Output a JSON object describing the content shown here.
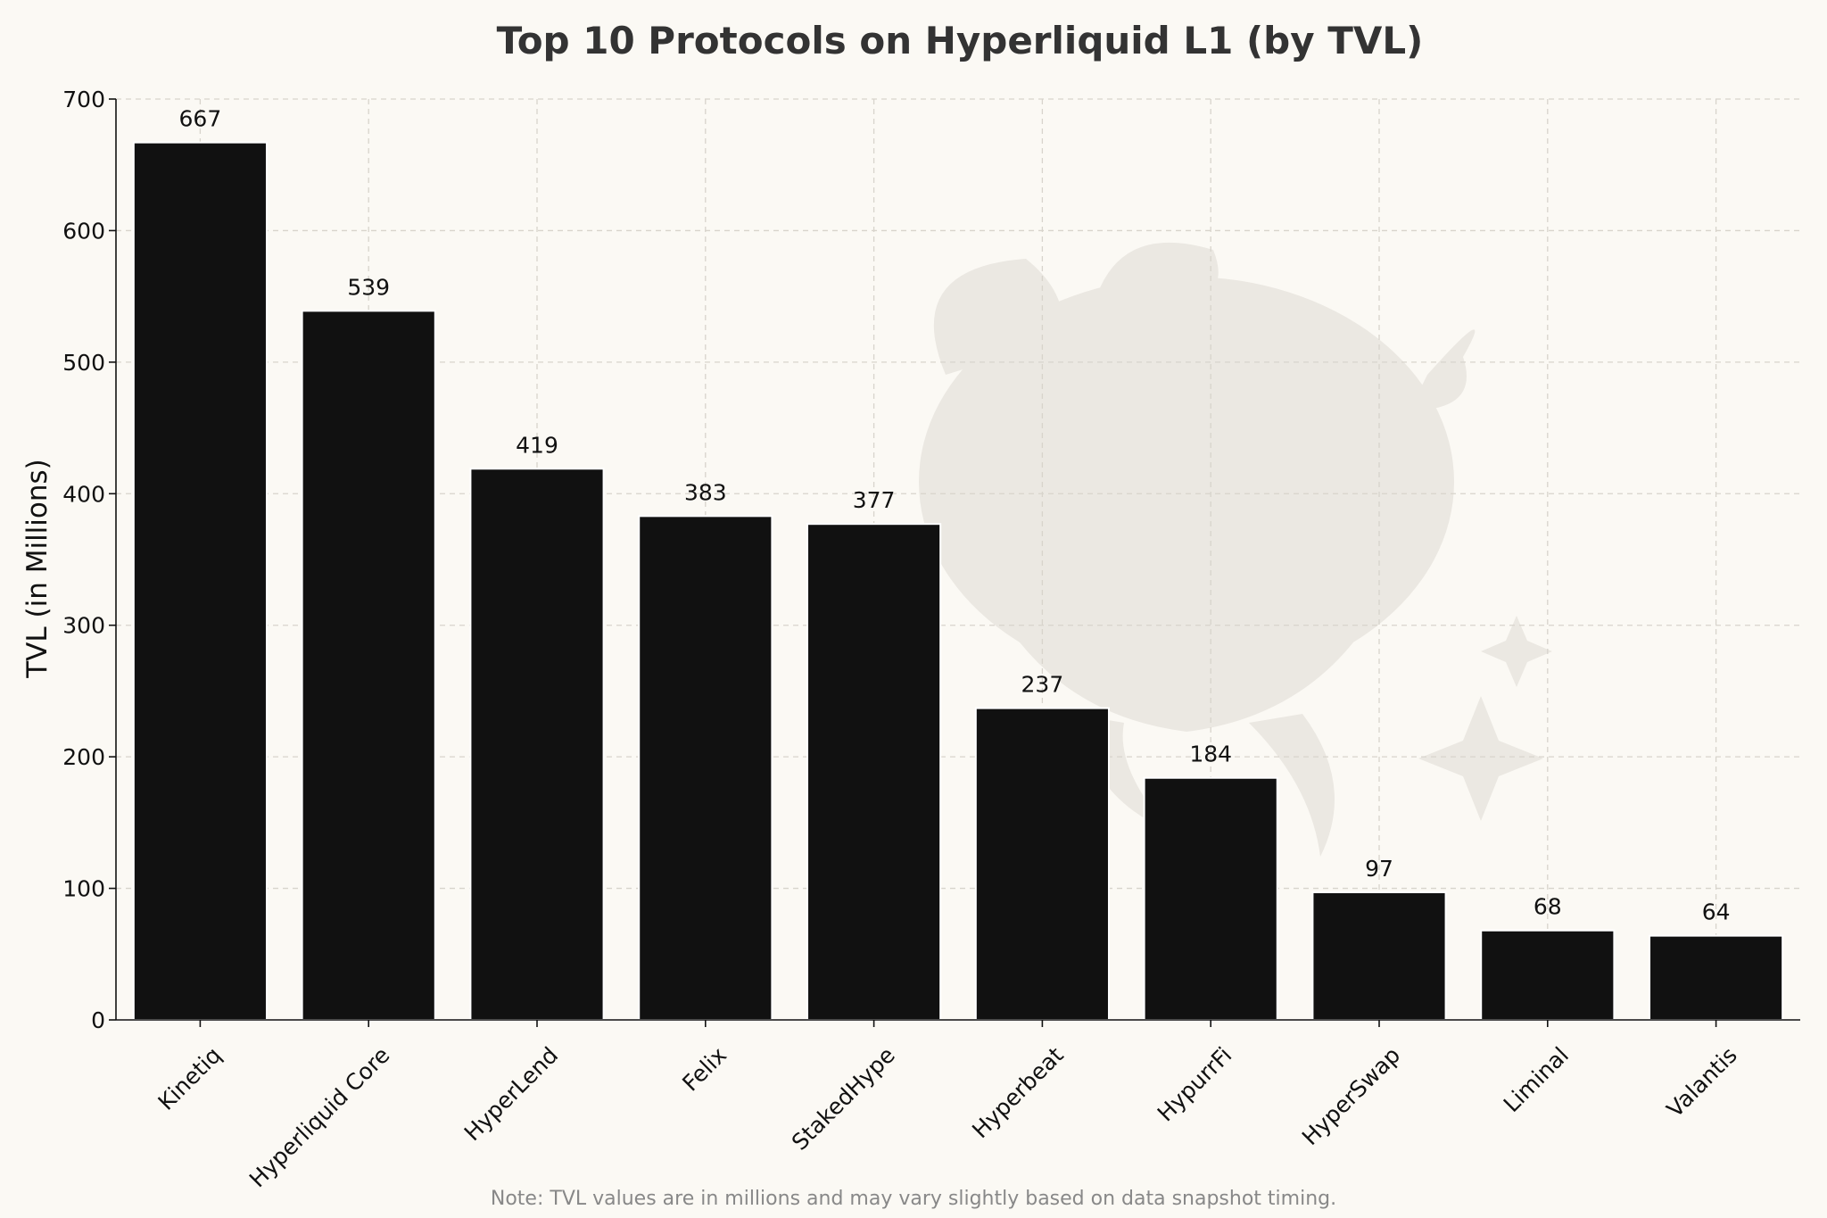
{
  "chart_data": {
    "type": "bar",
    "title": "Top 10 Protocols on Hyperliquid L1 (by TVL)",
    "xlabel": "",
    "ylabel": "TVL (in Millions)",
    "categories": [
      "Kinetiq",
      "Hyperliquid Core",
      "HyperLend",
      "Felix",
      "StakedHype",
      "Hyperbeat",
      "HypurrFi",
      "HyperSwap",
      "Liminal",
      "Valantis"
    ],
    "values": [
      667,
      539,
      419,
      383,
      377,
      237,
      184,
      97,
      68,
      64
    ],
    "data_labels": [
      "667",
      "539",
      "419",
      "383",
      "377",
      "237",
      "184",
      "97",
      "68",
      "64"
    ],
    "ylim": [
      0,
      700
    ],
    "yticks": [
      0,
      100,
      200,
      300,
      400,
      500,
      600,
      700
    ],
    "ytick_labels": [
      "0",
      "100",
      "200",
      "300",
      "400",
      "500",
      "600",
      "700"
    ],
    "grid": true,
    "bar_color": "#111111",
    "background_color": "#fbf9f4",
    "note": "Note: TVL values are in millions and may vary slightly based on data snapshot timing."
  }
}
